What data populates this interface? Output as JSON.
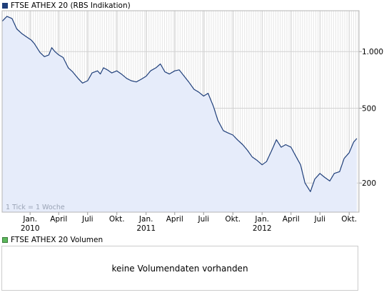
{
  "price_legend": {
    "label": "FTSE ATHEX 20 (RBS Indikation)",
    "color": "#1f3f7a"
  },
  "volume_legend": {
    "label": "FTSE ATHEX 20 Volumen",
    "color": "#5cb85c"
  },
  "tick_note": "1 Tick = 1 Woche",
  "no_volume_text": "keine Volumendaten vorhanden",
  "chart_data": {
    "type": "area",
    "y_scale": "log",
    "y_ticks": [
      {
        "value": 1000,
        "label": "1.000"
      },
      {
        "value": 500,
        "label": "500"
      },
      {
        "value": 200,
        "label": "200"
      }
    ],
    "x_ticks": [
      {
        "date": "2010-01-01",
        "label": "Jan."
      },
      {
        "date": "2010-04-01",
        "label": "April"
      },
      {
        "date": "2010-07-01",
        "label": "Juli"
      },
      {
        "date": "2010-10-01",
        "label": "Okt."
      },
      {
        "date": "2011-01-01",
        "label": "Jan."
      },
      {
        "date": "2011-04-01",
        "label": "April"
      },
      {
        "date": "2011-07-01",
        "label": "Juli"
      },
      {
        "date": "2011-10-01",
        "label": "Okt."
      },
      {
        "date": "2012-01-01",
        "label": "Jan."
      },
      {
        "date": "2012-04-01",
        "label": "April"
      },
      {
        "date": "2012-07-01",
        "label": "Juli"
      },
      {
        "date": "2012-10-01",
        "label": "Okt."
      }
    ],
    "year_labels": [
      {
        "date": "2010-01-01",
        "label": "2010"
      },
      {
        "date": "2011-01-01",
        "label": "2011"
      },
      {
        "date": "2012-01-01",
        "label": "2012"
      }
    ],
    "x_range": [
      "2009-10-05",
      "2012-11-01"
    ],
    "y_range": [
      140,
      1650
    ],
    "series": [
      {
        "color": "#1f3f7a",
        "fill": "#e6ecfa",
        "points": [
          [
            "2009-10-05",
            1450
          ],
          [
            "2009-10-20",
            1540
          ],
          [
            "2009-11-05",
            1500
          ],
          [
            "2009-11-20",
            1320
          ],
          [
            "2009-12-05",
            1250
          ],
          [
            "2009-12-20",
            1200
          ],
          [
            "2010-01-05",
            1150
          ],
          [
            "2010-01-15",
            1100
          ],
          [
            "2010-02-01",
            990
          ],
          [
            "2010-02-15",
            940
          ],
          [
            "2010-03-01",
            960
          ],
          [
            "2010-03-10",
            1050
          ],
          [
            "2010-03-20",
            1000
          ],
          [
            "2010-04-01",
            960
          ],
          [
            "2010-04-15",
            930
          ],
          [
            "2010-05-01",
            820
          ],
          [
            "2010-05-15",
            780
          ],
          [
            "2010-06-01",
            720
          ],
          [
            "2010-06-15",
            680
          ],
          [
            "2010-07-01",
            700
          ],
          [
            "2010-07-15",
            770
          ],
          [
            "2010-08-01",
            790
          ],
          [
            "2010-08-10",
            760
          ],
          [
            "2010-08-20",
            820
          ],
          [
            "2010-09-01",
            800
          ],
          [
            "2010-09-15",
            770
          ],
          [
            "2010-10-01",
            790
          ],
          [
            "2010-10-15",
            760
          ],
          [
            "2010-11-01",
            720
          ],
          [
            "2010-11-15",
            700
          ],
          [
            "2010-12-01",
            690
          ],
          [
            "2010-12-15",
            710
          ],
          [
            "2011-01-01",
            740
          ],
          [
            "2011-01-15",
            790
          ],
          [
            "2011-02-01",
            820
          ],
          [
            "2011-02-15",
            860
          ],
          [
            "2011-03-01",
            780
          ],
          [
            "2011-03-15",
            760
          ],
          [
            "2011-04-01",
            790
          ],
          [
            "2011-04-15",
            800
          ],
          [
            "2011-05-01",
            740
          ],
          [
            "2011-05-15",
            690
          ],
          [
            "2011-06-01",
            630
          ],
          [
            "2011-06-15",
            610
          ],
          [
            "2011-07-01",
            580
          ],
          [
            "2011-07-15",
            600
          ],
          [
            "2011-08-01",
            510
          ],
          [
            "2011-08-15",
            430
          ],
          [
            "2011-09-01",
            380
          ],
          [
            "2011-09-15",
            370
          ],
          [
            "2011-10-01",
            360
          ],
          [
            "2011-10-15",
            340
          ],
          [
            "2011-11-01",
            320
          ],
          [
            "2011-11-15",
            300
          ],
          [
            "2011-12-01",
            275
          ],
          [
            "2011-12-15",
            265
          ],
          [
            "2012-01-01",
            250
          ],
          [
            "2012-01-15",
            260
          ],
          [
            "2012-02-01",
            300
          ],
          [
            "2012-02-15",
            340
          ],
          [
            "2012-03-01",
            310
          ],
          [
            "2012-03-15",
            320
          ],
          [
            "2012-04-01",
            310
          ],
          [
            "2012-04-15",
            280
          ],
          [
            "2012-05-01",
            250
          ],
          [
            "2012-05-15",
            200
          ],
          [
            "2012-06-01",
            180
          ],
          [
            "2012-06-15",
            210
          ],
          [
            "2012-07-01",
            225
          ],
          [
            "2012-07-15",
            215
          ],
          [
            "2012-08-01",
            205
          ],
          [
            "2012-08-15",
            225
          ],
          [
            "2012-09-01",
            230
          ],
          [
            "2012-09-15",
            270
          ],
          [
            "2012-10-01",
            290
          ],
          [
            "2012-10-15",
            330
          ],
          [
            "2012-10-25",
            345
          ]
        ]
      }
    ]
  }
}
